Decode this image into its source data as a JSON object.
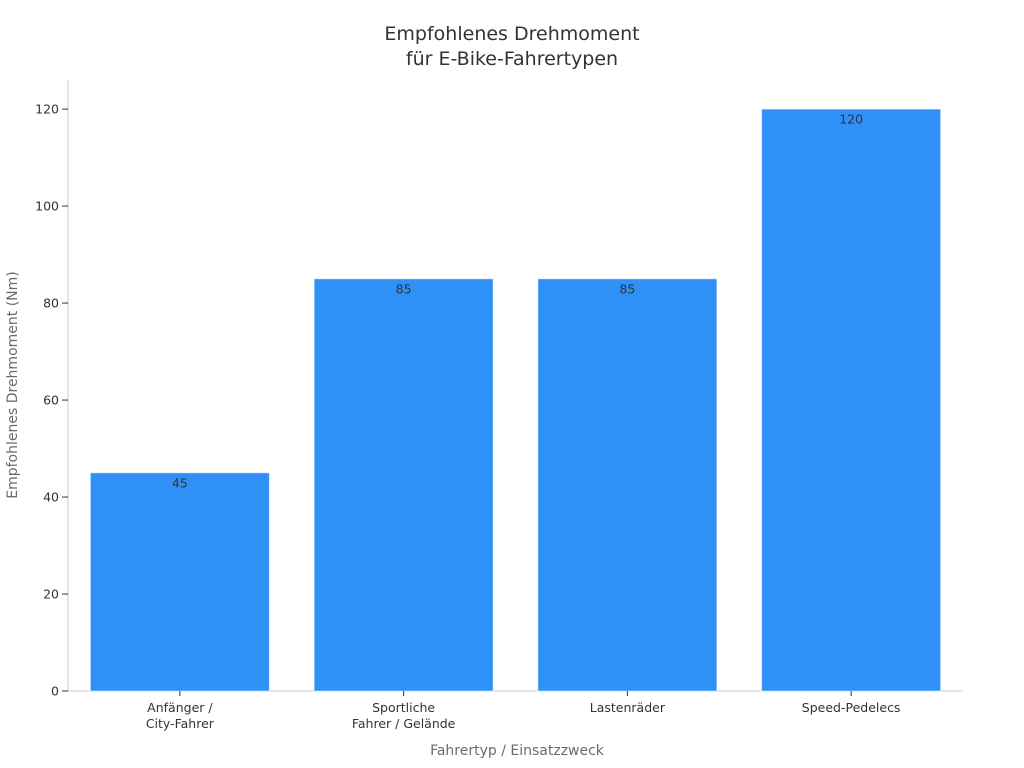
{
  "chart_data": {
    "type": "bar",
    "title_lines": [
      "Empfohlenes Drehmoment",
      "für E-Bike-Fahrertypen"
    ],
    "xlabel": "Fahrertyp / Einsatzzweck",
    "ylabel": "Empfohlenes Drehmoment (Nm)",
    "categories": [
      [
        "Anfänger /",
        "City-Fahrer"
      ],
      [
        "Sportliche",
        "Fahrer / Gelände"
      ],
      [
        "Lastenräder"
      ],
      [
        "Speed-Pedelecs"
      ]
    ],
    "values": [
      45,
      85,
      85,
      120
    ],
    "data_labels": [
      "45",
      "85",
      "85",
      "120"
    ],
    "ylim": [
      0,
      126
    ],
    "yticks": [
      0,
      20,
      40,
      60,
      80,
      100,
      120
    ],
    "grid": false,
    "bar_color": "#2f91f8",
    "text_color": "#333333",
    "axis_label_color": "#6b6b6b",
    "axis_color": "#cccccc"
  }
}
